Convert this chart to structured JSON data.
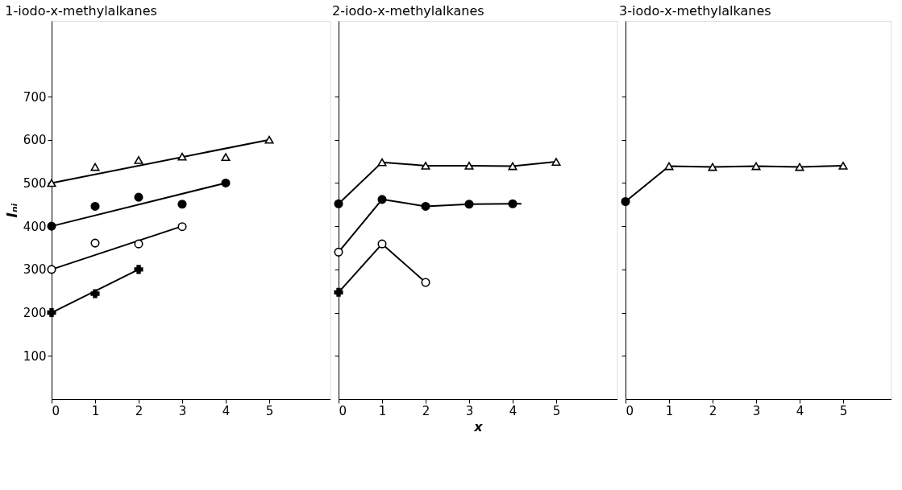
{
  "chart_data": [
    {
      "type": "line",
      "title": "1-iodo-x-methylalkanes",
      "ylabel": "Iₙᵢ",
      "xlim": [
        0,
        6.4
      ],
      "xticks": [
        0,
        1,
        2,
        3,
        4,
        5
      ],
      "ylim": [
        0,
        875
      ],
      "yticks": [
        100,
        200,
        300,
        400,
        500,
        600,
        700
      ],
      "grid": false,
      "series": [
        {
          "type": "line",
          "x": [
            0,
            5
          ],
          "values": [
            500,
            600
          ],
          "color": "#000000",
          "marker": "none"
        },
        {
          "type": "line",
          "x": [
            0,
            4
          ],
          "values": [
            400,
            500
          ],
          "color": "#000000",
          "marker": "none"
        },
        {
          "type": "line",
          "x": [
            0,
            3
          ],
          "values": [
            300,
            400
          ],
          "color": "#000000",
          "marker": "none"
        },
        {
          "type": "line",
          "x": [
            0,
            2
          ],
          "values": [
            200,
            300
          ],
          "color": "#000000",
          "marker": "none"
        },
        {
          "type": "scatter",
          "x": [
            0,
            1,
            2,
            3,
            4,
            5
          ],
          "values": [
            500,
            537,
            553,
            561,
            560,
            600
          ],
          "color": "#ffffff",
          "marker": "triangle"
        },
        {
          "type": "scatter",
          "x": [
            0,
            1,
            2,
            3,
            4
          ],
          "values": [
            400,
            446,
            467,
            451,
            500
          ],
          "color": "#000000",
          "marker": "circle"
        },
        {
          "type": "scatter",
          "x": [
            0,
            1,
            2,
            3
          ],
          "values": [
            300,
            361,
            359,
            399
          ],
          "color": "#ffffff",
          "marker": "circle"
        },
        {
          "type": "scatter",
          "x": [
            0,
            1,
            2
          ],
          "values": [
            200,
            244,
            300
          ],
          "color": "#000000",
          "marker": "cross"
        }
      ]
    },
    {
      "type": "line",
      "title": "2-iodo-x-methylalkanes",
      "xlabel": "x",
      "xlim": [
        0,
        6.4
      ],
      "xticks": [
        0,
        1,
        2,
        3,
        4,
        5
      ],
      "ylim": [
        0,
        875
      ],
      "yticks": [
        100,
        200,
        300,
        400,
        500,
        600,
        700
      ],
      "tick_labels": "x",
      "grid": false,
      "series": [
        {
          "type": "line",
          "x": [
            0,
            1,
            2,
            3,
            4,
            5
          ],
          "values": [
            452,
            548,
            540,
            540,
            539,
            549
          ],
          "color": "#000000",
          "marker": "none"
        },
        {
          "type": "line",
          "x": [
            0,
            1,
            2,
            3,
            4,
            4.2
          ],
          "values": [
            340,
            462,
            446,
            451,
            452,
            452
          ],
          "color": "#000000",
          "marker": "none"
        },
        {
          "type": "line",
          "x": [
            0,
            1,
            2
          ],
          "values": [
            247,
            359,
            270
          ],
          "color": "#000000",
          "marker": "none"
        },
        {
          "type": "scatter",
          "x": [
            1,
            2,
            3,
            4,
            5
          ],
          "values": [
            548,
            540,
            540,
            539,
            549
          ],
          "color": "#ffffff",
          "marker": "triangle"
        },
        {
          "type": "scatter",
          "x": [
            0,
            1,
            2,
            3,
            4
          ],
          "values": [
            452,
            462,
            446,
            451,
            452
          ],
          "color": "#000000",
          "marker": "circle"
        },
        {
          "type": "scatter",
          "x": [
            0,
            1,
            2
          ],
          "values": [
            340,
            359,
            270
          ],
          "color": "#ffffff",
          "marker": "circle"
        },
        {
          "type": "scatter",
          "x": [
            0
          ],
          "values": [
            247
          ],
          "color": "#000000",
          "marker": "cross"
        }
      ]
    },
    {
      "type": "line",
      "title": "3-iodo-x-methylalkanes",
      "xlim": [
        0,
        6.1
      ],
      "xticks": [
        0,
        1,
        2,
        3,
        4,
        5
      ],
      "ylim": [
        0,
        875
      ],
      "yticks": [
        100,
        200,
        300,
        400,
        500,
        600,
        700
      ],
      "tick_labels": "x",
      "grid": false,
      "series": [
        {
          "type": "line",
          "x": [
            0,
            1,
            2,
            3,
            4,
            5
          ],
          "values": [
            457,
            539,
            537,
            539,
            537,
            540
          ],
          "color": "#000000",
          "marker": "none"
        },
        {
          "type": "scatter",
          "x": [
            1,
            2,
            3,
            4,
            5
          ],
          "values": [
            539,
            537,
            539,
            537,
            540
          ],
          "color": "#ffffff",
          "marker": "triangle"
        },
        {
          "type": "scatter",
          "x": [
            0
          ],
          "values": [
            457
          ],
          "color": "#000000",
          "marker": "circle"
        }
      ]
    }
  ]
}
